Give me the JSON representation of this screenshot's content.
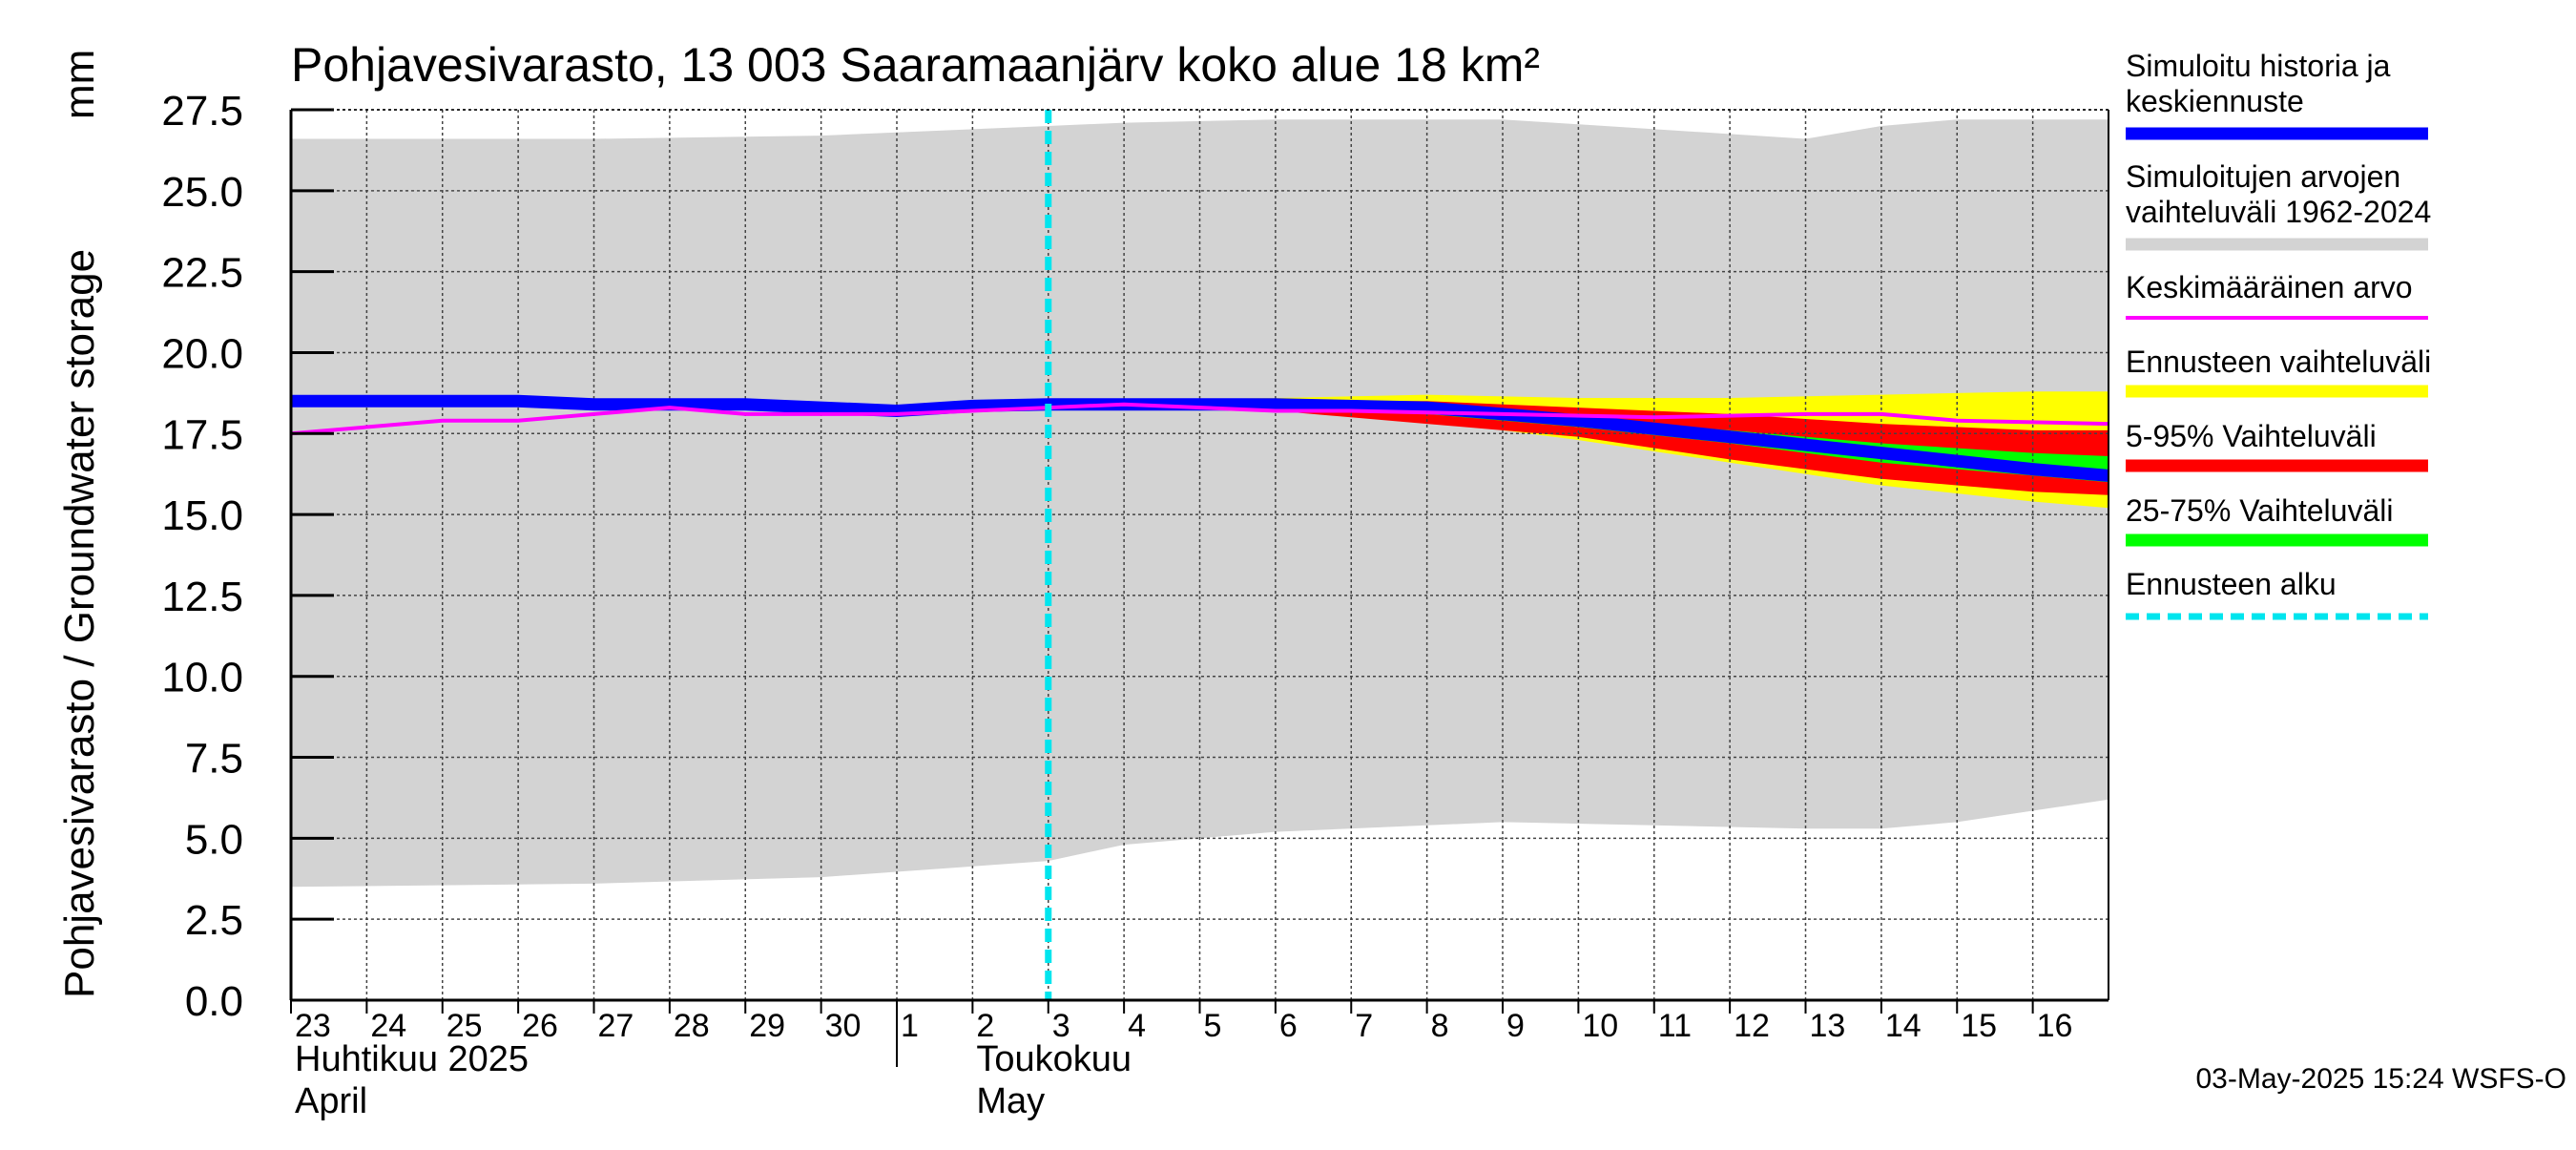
{
  "chart_data": {
    "type": "area",
    "title": "Pohjavesivarasto, 13 003 Saaramaanjärv koko alue 18 km²",
    "ylabel": "Pohjavesivarasto / Groundwater storage",
    "yunit": "mm",
    "ylim": [
      0.0,
      27.5
    ],
    "yticks": [
      "0.0",
      "2.5",
      "5.0",
      "7.5",
      "10.0",
      "12.5",
      "15.0",
      "17.5",
      "20.0",
      "22.5",
      "25.0",
      "27.5"
    ],
    "xlim": [
      "2025-04-23",
      "2025-05-17"
    ],
    "x_tick_labels": [
      {
        "date": "2025-04-23",
        "label": "23"
      },
      {
        "date": "2025-04-24",
        "label": "24"
      },
      {
        "date": "2025-04-25",
        "label": "25"
      },
      {
        "date": "2025-04-26",
        "label": "26"
      },
      {
        "date": "2025-04-27",
        "label": "27"
      },
      {
        "date": "2025-04-28",
        "label": "28"
      },
      {
        "date": "2025-04-29",
        "label": "29"
      },
      {
        "date": "2025-04-30",
        "label": "30"
      },
      {
        "date": "2025-05-01",
        "label": "1"
      },
      {
        "date": "2025-05-02",
        "label": "2"
      },
      {
        "date": "2025-05-03",
        "label": "3"
      },
      {
        "date": "2025-05-04",
        "label": "4"
      },
      {
        "date": "2025-05-05",
        "label": "5"
      },
      {
        "date": "2025-05-06",
        "label": "6"
      },
      {
        "date": "2025-05-07",
        "label": "7"
      },
      {
        "date": "2025-05-08",
        "label": "8"
      },
      {
        "date": "2025-05-09",
        "label": "9"
      },
      {
        "date": "2025-05-10",
        "label": "10"
      },
      {
        "date": "2025-05-11",
        "label": "11"
      },
      {
        "date": "2025-05-12",
        "label": "12"
      },
      {
        "date": "2025-05-13",
        "label": "13"
      },
      {
        "date": "2025-05-14",
        "label": "14"
      },
      {
        "date": "2025-05-15",
        "label": "15"
      },
      {
        "date": "2025-05-16",
        "label": "16"
      }
    ],
    "month_labels": [
      {
        "date": "2025-04-23",
        "line1": "Huhtikuu  2025",
        "line2": "April"
      },
      {
        "date": "2025-05-02",
        "line1": "Toukokuu",
        "line2": "May"
      }
    ],
    "month_boundary": "2025-05-01",
    "forecast_start": "2025-05-03",
    "grid": true,
    "legend_position": "right",
    "timestamp": "03-May-2025 15:24 WSFS-O",
    "series": [
      {
        "name": "Simuloitujen arvojen vaihteluväli 1962-2024",
        "kind": "band",
        "color": "#d3d3d3",
        "x": [
          "2025-04-23",
          "2025-04-27",
          "2025-04-30",
          "2025-05-03",
          "2025-05-04",
          "2025-05-06",
          "2025-05-09",
          "2025-05-13",
          "2025-05-14",
          "2025-05-15",
          "2025-05-17"
        ],
        "upper": [
          26.6,
          26.6,
          26.7,
          27.0,
          27.1,
          27.2,
          27.2,
          26.6,
          27.0,
          27.2,
          27.2
        ],
        "lower": [
          3.5,
          3.6,
          3.8,
          4.3,
          4.8,
          5.2,
          5.5,
          5.3,
          5.3,
          5.5,
          6.2
        ]
      },
      {
        "name": "Ennusteen vaihteluväli",
        "kind": "band",
        "color": "#ffff00",
        "x": [
          "2025-05-03",
          "2025-05-06",
          "2025-05-08",
          "2025-05-10",
          "2025-05-12",
          "2025-05-14",
          "2025-05-16",
          "2025-05-17"
        ],
        "upper": [
          18.5,
          18.6,
          18.7,
          18.6,
          18.6,
          18.7,
          18.8,
          18.8
        ],
        "lower": [
          18.4,
          18.2,
          17.9,
          17.3,
          16.6,
          15.9,
          15.4,
          15.2
        ]
      },
      {
        "name": "5-95% Vaihteluväli",
        "kind": "band",
        "color": "#ff0000",
        "x": [
          "2025-05-03",
          "2025-05-06",
          "2025-05-08",
          "2025-05-10",
          "2025-05-12",
          "2025-05-14",
          "2025-05-16",
          "2025-05-17"
        ],
        "upper": [
          18.5,
          18.5,
          18.5,
          18.3,
          18.1,
          17.8,
          17.6,
          17.6
        ],
        "lower": [
          18.4,
          18.2,
          17.8,
          17.4,
          16.7,
          16.1,
          15.7,
          15.6
        ]
      },
      {
        "name": "25-75% Vaihteluväli",
        "kind": "band",
        "color": "#00ff00",
        "x": [
          "2025-05-03",
          "2025-05-06",
          "2025-05-08",
          "2025-05-10",
          "2025-05-12",
          "2025-05-14",
          "2025-05-16",
          "2025-05-17"
        ],
        "upper": [
          18.45,
          18.4,
          18.3,
          18.0,
          17.6,
          17.2,
          16.9,
          16.8
        ],
        "lower": [
          18.4,
          18.3,
          18.1,
          17.7,
          17.2,
          16.6,
          16.2,
          16.0
        ]
      },
      {
        "name": "Keskimääräinen arvo",
        "kind": "line",
        "color": "#ff00ff",
        "x": [
          "2025-04-23",
          "2025-04-25",
          "2025-04-26",
          "2025-04-28",
          "2025-04-29",
          "2025-04-30",
          "2025-05-01",
          "2025-05-03",
          "2025-05-04",
          "2025-05-06",
          "2025-05-07",
          "2025-05-09",
          "2025-05-11",
          "2025-05-13",
          "2025-05-14",
          "2025-05-15",
          "2025-05-17"
        ],
        "y": [
          17.5,
          17.9,
          17.9,
          18.3,
          18.1,
          18.1,
          18.1,
          18.3,
          18.4,
          18.2,
          18.2,
          18.1,
          18.0,
          18.1,
          18.1,
          17.9,
          17.8
        ]
      },
      {
        "name": "Simuloitu historia ja keskiennuste",
        "kind": "line",
        "color": "#0000ff",
        "x": [
          "2025-04-23",
          "2025-04-26",
          "2025-04-27",
          "2025-04-29",
          "2025-05-01",
          "2025-05-02",
          "2025-05-03",
          "2025-05-04",
          "2025-05-06",
          "2025-05-08",
          "2025-05-10",
          "2025-05-12",
          "2025-05-14",
          "2025-05-16",
          "2025-05-17"
        ],
        "y": [
          18.5,
          18.5,
          18.4,
          18.4,
          18.2,
          18.35,
          18.4,
          18.4,
          18.4,
          18.3,
          17.9,
          17.4,
          16.9,
          16.4,
          16.2
        ]
      },
      {
        "name": "Ennusteen alku",
        "kind": "vline",
        "color": "#00e5ee",
        "x": "2025-05-03"
      }
    ]
  },
  "legend": [
    {
      "key": "history",
      "lines": [
        "Simuloitu historia ja",
        "keskiennuste"
      ],
      "color": "#0000ff",
      "style": "thick"
    },
    {
      "key": "range",
      "lines": [
        "Simuloitujen arvojen",
        "vaihteluväli 1962-2024"
      ],
      "color": "#d3d3d3",
      "style": "thick"
    },
    {
      "key": "mean",
      "lines": [
        "Keskimääräinen arvo"
      ],
      "color": "#ff00ff",
      "style": "thin"
    },
    {
      "key": "forecast-range",
      "lines": [
        "Ennusteen vaihteluväli"
      ],
      "color": "#ffff00",
      "style": "thick"
    },
    {
      "key": "p5-95",
      "lines": [
        "5-95% Vaihteluväli"
      ],
      "color": "#ff0000",
      "style": "thick"
    },
    {
      "key": "p25-75",
      "lines": [
        "25-75% Vaihteluväli"
      ],
      "color": "#00ff00",
      "style": "thick"
    },
    {
      "key": "forecast-start",
      "lines": [
        "Ennusteen alku"
      ],
      "color": "#00e5ee",
      "style": "dashed"
    }
  ]
}
